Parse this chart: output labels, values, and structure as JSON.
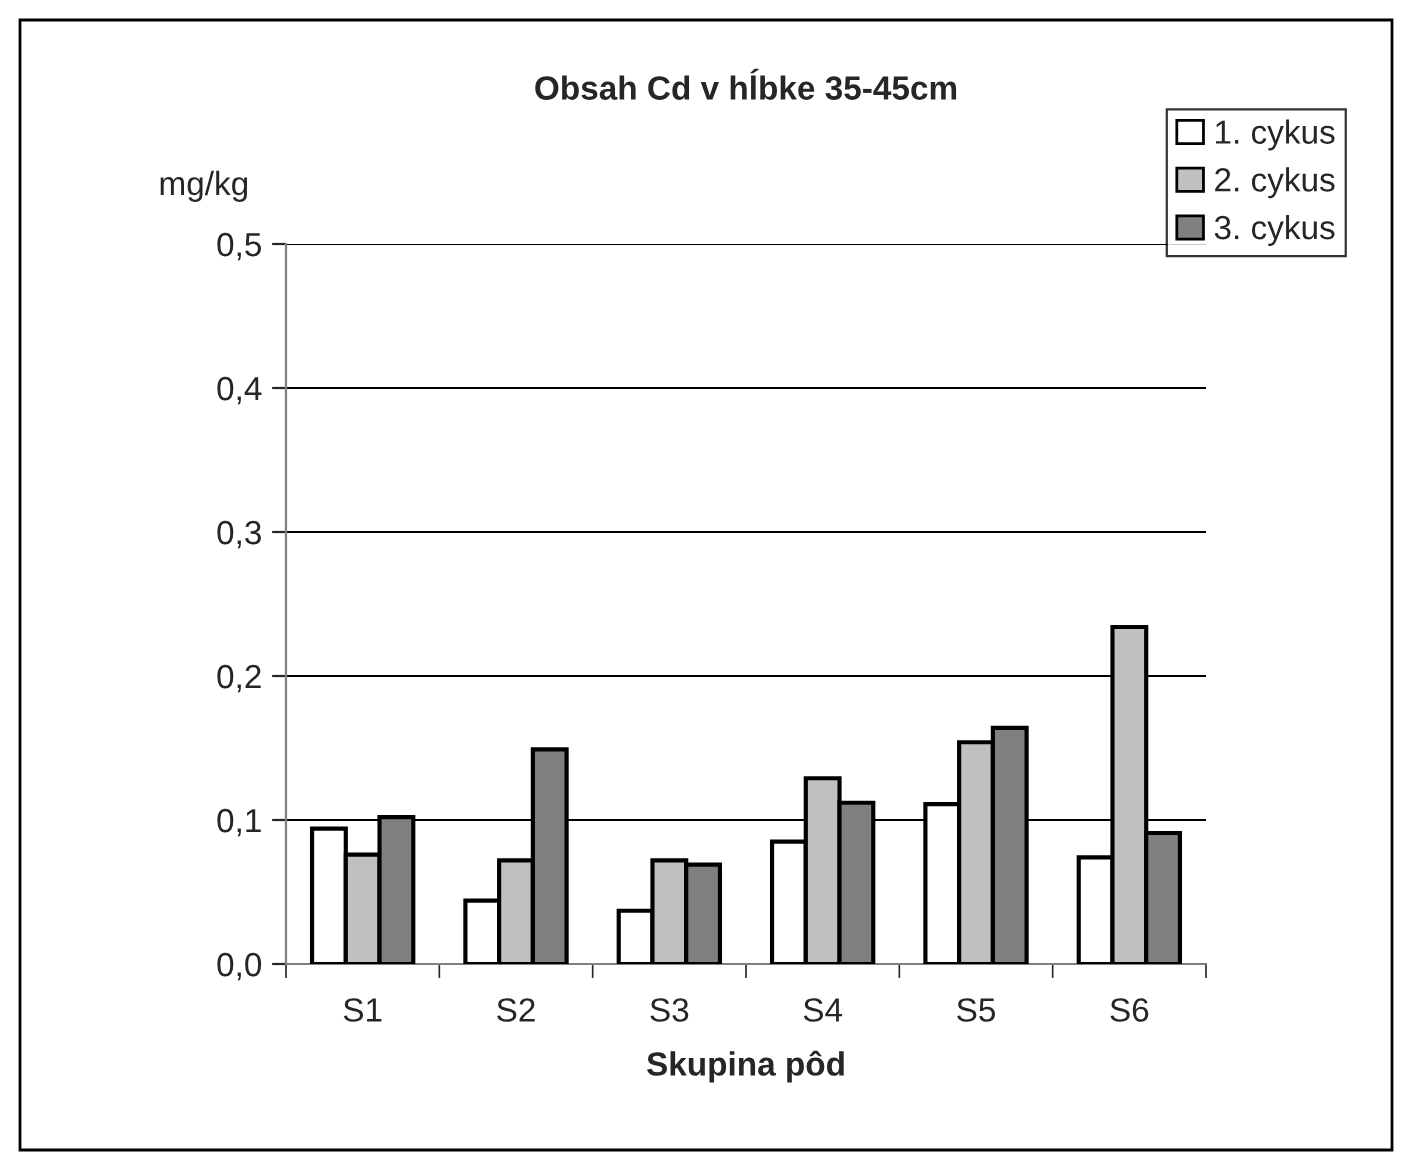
{
  "chart_data": {
    "type": "bar",
    "title": "Obsah Cd v hĺbke 35-45cm",
    "xlabel": "Skupina pôd",
    "ylabel": "mg/kg",
    "categories": [
      "S1",
      "S2",
      "S3",
      "S4",
      "S5",
      "S6"
    ],
    "series": [
      {
        "name": "1. cykus",
        "color": "#ffffff",
        "values": [
          0.094,
          0.044,
          0.037,
          0.085,
          0.111,
          0.074
        ]
      },
      {
        "name": "2. cykus",
        "color": "#c0c0c0",
        "values": [
          0.076,
          0.072,
          0.072,
          0.129,
          0.154,
          0.234
        ]
      },
      {
        "name": "3. cykus",
        "color": "#808080",
        "values": [
          0.102,
          0.149,
          0.069,
          0.112,
          0.164,
          0.091
        ]
      }
    ],
    "ylim": [
      0,
      0.5
    ],
    "yticks": [
      {
        "value": 0,
        "label": "0,0"
      },
      {
        "value": 0.1,
        "label": "0,1"
      },
      {
        "value": 0.2,
        "label": "0,2"
      },
      {
        "value": 0.3,
        "label": "0,3"
      },
      {
        "value": 0.4,
        "label": "0,4"
      },
      {
        "value": 0.5,
        "label": "0,5"
      }
    ],
    "grid": "y",
    "legend": "top right"
  }
}
